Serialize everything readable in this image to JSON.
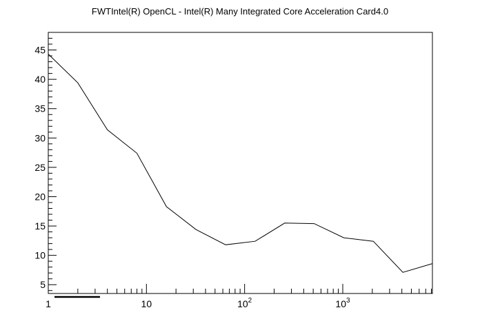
{
  "chart_data": {
    "type": "line",
    "title": "FWTIntel(R) OpenCL - Intel(R) Many Integrated Core Acceleration Card4.0",
    "xlabel": "",
    "ylabel": "",
    "x_scale": "log",
    "xlim": [
      1,
      8192
    ],
    "ylim": [
      3.5,
      48
    ],
    "grid": false,
    "legend": "none",
    "y_major_ticks": [
      5,
      10,
      15,
      20,
      25,
      30,
      35,
      40,
      45
    ],
    "x_tick_labels": [
      {
        "value": 1,
        "base": "1",
        "exp": ""
      },
      {
        "value": 10,
        "base": "10",
        "exp": ""
      },
      {
        "value": 100,
        "base": "10",
        "exp": "2"
      },
      {
        "value": 1000,
        "base": "10",
        "exp": "3"
      }
    ],
    "series": [
      {
        "color": "#000000",
        "x": [
          1,
          2,
          4,
          8,
          16,
          32,
          64,
          128,
          256,
          512,
          1024,
          2048,
          4096,
          8192
        ],
        "y": [
          44.3,
          39.4,
          31.4,
          27.4,
          18.3,
          14.4,
          11.8,
          12.4,
          15.5,
          15.4,
          13.0,
          12.4,
          7.1,
          8.6
        ]
      }
    ]
  }
}
